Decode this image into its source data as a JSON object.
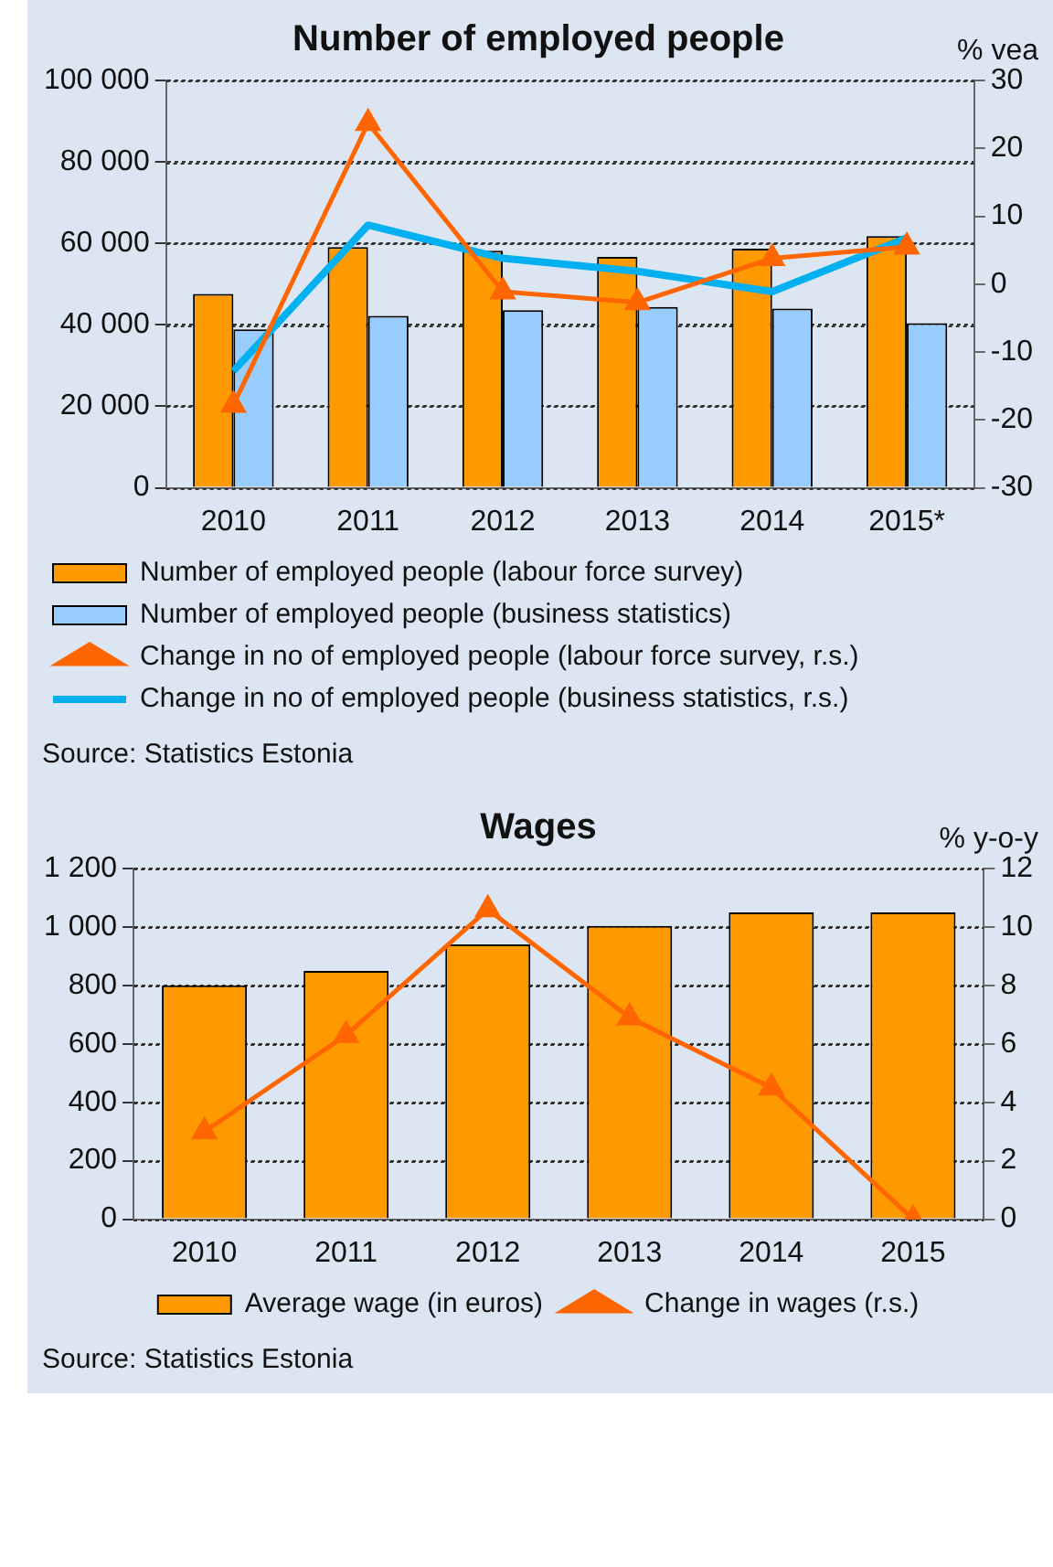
{
  "chart_data": [
    {
      "type": "bar",
      "title": "Number of employed people",
      "y2label": "% vea",
      "categories": [
        "2010",
        "2011",
        "2012",
        "2013",
        "2014",
        "2015*"
      ],
      "series": [
        {
          "name": "Number of employed people (labour force survey)",
          "color": "#ff9900",
          "values": [
            47600,
            59100,
            58200,
            56700,
            58700,
            61800
          ]
        },
        {
          "name": "Number of employed people (business statistics)",
          "color": "#99ccff",
          "values": [
            38900,
            42200,
            43600,
            44400,
            44000,
            40400
          ]
        },
        {
          "name": "Change in no of employed people (labour force survey, r.s.)",
          "type": "line",
          "axis": "y2",
          "color": "#ff6600",
          "marker": "triangle",
          "values": [
            -17.8,
            23.7,
            -1.1,
            -2.7,
            3.8,
            5.5
          ]
        },
        {
          "name": "Change in no of employed people (business statistics, r.s.)",
          "type": "line",
          "axis": "y2",
          "color": "#00b0f0",
          "marker": "none",
          "values": [
            -12.8,
            8.7,
            3.8,
            1.9,
            -1.1,
            6.8
          ]
        }
      ],
      "ylim": [
        0,
        100000
      ],
      "yticks": [
        0,
        {
          "value": 20000,
          "label": "20 000"
        },
        {
          "value": 40000,
          "label": "40 000"
        },
        {
          "value": 60000,
          "label": "60 000"
        },
        {
          "value": 80000,
          "label": "80 000"
        },
        {
          "value": 100000,
          "label": "100 000"
        }
      ],
      "y2lim": [
        -30,
        30
      ],
      "y2ticks": [
        -30,
        -20,
        -10,
        0,
        10,
        20,
        30
      ],
      "grid": "y",
      "legend": "bottom",
      "annotations": [
        "Source: Statistics Estonia"
      ]
    },
    {
      "type": "bar",
      "title": "Wages",
      "y2label": "% y-o-y",
      "categories": [
        "2010",
        "2011",
        "2012",
        "2013",
        "2014",
        "2015"
      ],
      "series": [
        {
          "name": "Average wage (in euros)",
          "color": "#ff9900",
          "values": [
            800,
            850,
            940,
            1004,
            1050,
            1050
          ]
        },
        {
          "name": "Change in wages (r.s.)",
          "type": "line",
          "axis": "y2",
          "color": "#ff6600",
          "marker": "triangle",
          "values": [
            3.0,
            6.3,
            10.6,
            6.9,
            4.5,
            0
          ]
        }
      ],
      "ylim": [
        0,
        1200
      ],
      "yticks": [
        0,
        200,
        400,
        600,
        800,
        {
          "value": 1000,
          "label": "1 000"
        },
        {
          "value": 1200,
          "label": "1 200"
        }
      ],
      "y2lim": [
        0,
        12
      ],
      "y2ticks": [
        0,
        2,
        4,
        6,
        8,
        10,
        12
      ],
      "grid": "y",
      "legend": "bottom",
      "annotations": [
        "Source: Statistics Estonia"
      ]
    }
  ]
}
